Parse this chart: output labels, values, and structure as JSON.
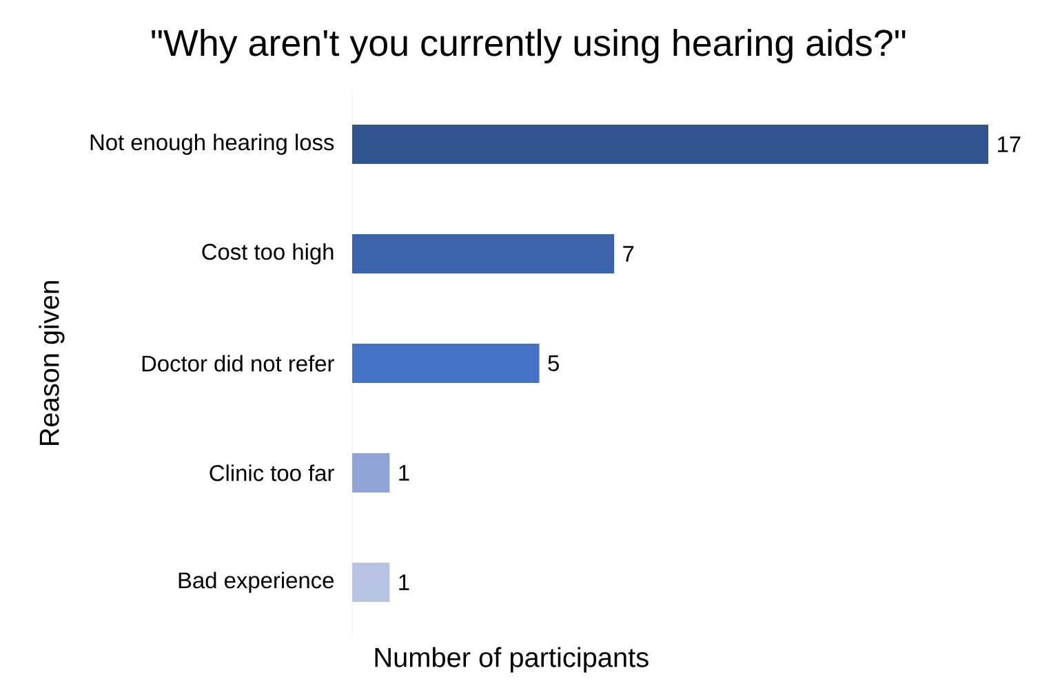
{
  "chart_data": {
    "type": "bar",
    "orientation": "horizontal",
    "title": "\"Why aren't you currently using hearing aids?\"",
    "xlabel": "Number of participants",
    "ylabel": "Reason given",
    "categories": [
      "Not enough hearing loss",
      "Cost too high",
      "Doctor did not refer",
      "Clinic too far",
      "Bad experience"
    ],
    "values": [
      17,
      7,
      5,
      1,
      1
    ],
    "colors": [
      "#31568f",
      "#3a63aa",
      "#4472c4",
      "#8fa4d5",
      "#b8c2e2"
    ],
    "data_labels": true,
    "tick_labels": "y"
  }
}
